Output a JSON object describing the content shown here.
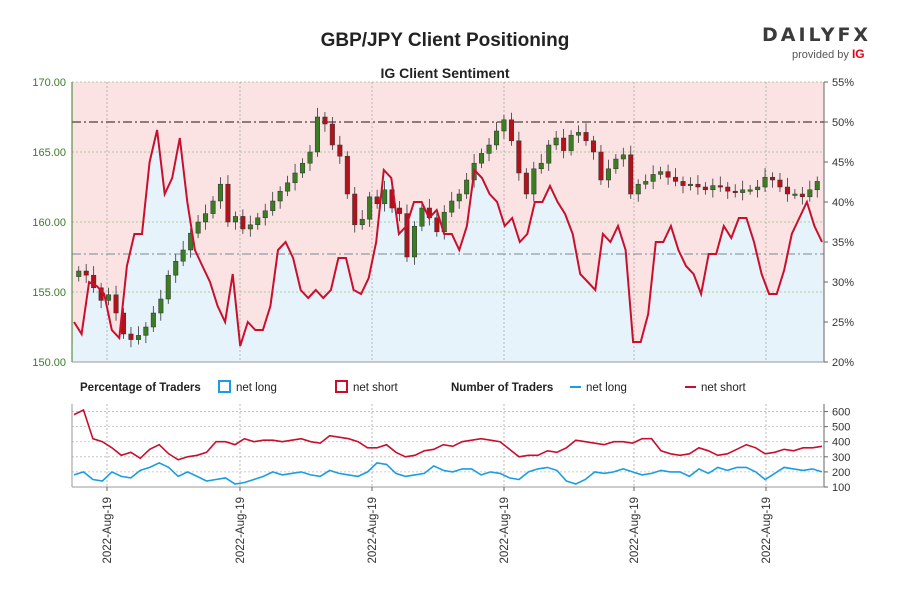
{
  "header": {
    "logo_text": "DAILYFX",
    "logo_sub_prefix": "provided by",
    "logo_sub_brand": "IG"
  },
  "colors": {
    "long_fill": "#e6f3fb",
    "short_fill": "#fbe3e4",
    "net_long": "#1a9ee0",
    "net_short": "#c8102e",
    "candle_up": "#3a7d22",
    "candle_down": "#b3121a",
    "left_axis_text": "#3a7d22",
    "grid": "#9bbf82"
  },
  "chart_data": [
    {
      "type": "candlestick",
      "title": "GBP/JPY Client Positioning",
      "subtitle": "IG Client Sentiment",
      "y_left": {
        "ticks": [
          "150.00",
          "155.00",
          "160.00",
          "165.00",
          "170.00"
        ],
        "min": 150,
        "max": 170
      },
      "y_right": {
        "ticks": [
          "20%",
          "25%",
          "30%",
          "35%",
          "40%",
          "45%",
          "50%",
          "55%"
        ],
        "min": 20,
        "max": 55
      },
      "reference_lines": {
        "percent_50": 50,
        "long_share": 33.5
      },
      "price_close": [
        156.5,
        156.2,
        155.3,
        154.4,
        154.8,
        153.5,
        152.0,
        151.6,
        151.9,
        152.5,
        153.5,
        154.5,
        156.2,
        157.2,
        158.0,
        159.2,
        160.0,
        160.6,
        161.5,
        162.7,
        160.0,
        160.4,
        159.5,
        159.8,
        160.3,
        160.8,
        161.5,
        162.2,
        162.8,
        163.5,
        164.2,
        165.0,
        167.5,
        167.0,
        165.5,
        164.7,
        162.0,
        159.8,
        160.2,
        161.8,
        161.3,
        162.3,
        161.0,
        160.6,
        157.5,
        159.7,
        161.0,
        160.3,
        159.3,
        160.7,
        161.5,
        162.0,
        163.0,
        164.2,
        164.9,
        165.5,
        166.5,
        167.3,
        165.8,
        163.5,
        162.0,
        163.8,
        164.2,
        165.5,
        166.0,
        165.1,
        166.2,
        166.4,
        165.8,
        165.0,
        163.0,
        163.8,
        164.5,
        164.8,
        162.0,
        162.7,
        162.9,
        163.4,
        163.6,
        163.2,
        162.9,
        162.6,
        162.7,
        162.5,
        162.3,
        162.6,
        162.5,
        162.2,
        162.1,
        162.3,
        162.3,
        162.5,
        163.2,
        163.0,
        162.5,
        162.0,
        162.0,
        161.8,
        162.3,
        162.9
      ],
      "pct_net_long": [
        25.0,
        23.5,
        30.0,
        29.5,
        28.5,
        24.0,
        23.0,
        32.0,
        36.0,
        36.0,
        45.0,
        49.0,
        41.0,
        43.0,
        48.0,
        40.0,
        34.0,
        32.0,
        30.0,
        27.0,
        25.0,
        31.0,
        22.0,
        25.0,
        24.0,
        24.0,
        27.0,
        34.0,
        35.0,
        33.0,
        29.0,
        28.0,
        29.0,
        28.0,
        29.0,
        33.0,
        33.0,
        29.0,
        28.5,
        30.5,
        35.0,
        44.0,
        43.0,
        36.0,
        37.0,
        40.0,
        40.0,
        38.0,
        39.0,
        36.0,
        36.0,
        34.0,
        37.0,
        44.0,
        43.0,
        41.0,
        40.0,
        37.0,
        38.0,
        35.0,
        36.0,
        40.0,
        40.0,
        42.0,
        40.0,
        38.5,
        36.0,
        31.0,
        30.0,
        29.0,
        36.0,
        35.0,
        37.0,
        34.0,
        22.5,
        22.5,
        26.0,
        35.0,
        35.0,
        37.0,
        34.0,
        32.0,
        31.0,
        28.5,
        33.5,
        33.5,
        37.0,
        35.5,
        38.0,
        38.0,
        35.0,
        31.0,
        28.5,
        28.5,
        31.5,
        36.0,
        38.0,
        40.0,
        37.0,
        35.0
      ]
    },
    {
      "type": "line",
      "legend": {
        "percentage_title": "Percentage of Traders",
        "number_title": "Number of Traders",
        "net_long": "net long",
        "net_short": "net short"
      },
      "y": {
        "ticks": [
          "100",
          "200",
          "300",
          "400",
          "500",
          "600"
        ],
        "min": 100,
        "max": 650
      },
      "x_ticks": [
        "2022-Aug-19",
        "2022-Aug-19",
        "2022-Aug-19",
        "2022-Aug-19",
        "2022-Aug-19",
        "2022-Aug-19"
      ],
      "series": [
        {
          "name": "net long",
          "values": [
            180,
            200,
            150,
            140,
            200,
            170,
            160,
            210,
            230,
            260,
            230,
            170,
            200,
            170,
            140,
            150,
            160,
            120,
            130,
            150,
            170,
            200,
            180,
            190,
            200,
            180,
            170,
            210,
            190,
            180,
            170,
            200,
            260,
            250,
            190,
            170,
            180,
            190,
            240,
            210,
            200,
            220,
            220,
            180,
            200,
            190,
            160,
            150,
            200,
            220,
            230,
            210,
            140,
            120,
            150,
            200,
            190,
            200,
            220,
            200,
            180,
            190,
            210,
            200,
            200,
            170,
            220,
            190,
            230,
            210,
            230,
            230,
            200,
            150,
            190,
            230,
            220,
            210,
            220,
            200
          ]
        },
        {
          "name": "net short",
          "values": [
            580,
            610,
            420,
            400,
            360,
            310,
            330,
            290,
            350,
            380,
            320,
            280,
            300,
            310,
            330,
            400,
            400,
            380,
            420,
            400,
            410,
            410,
            400,
            410,
            420,
            400,
            390,
            440,
            430,
            420,
            400,
            360,
            360,
            380,
            330,
            300,
            310,
            340,
            350,
            380,
            370,
            400,
            410,
            420,
            410,
            400,
            350,
            300,
            310,
            310,
            340,
            330,
            360,
            410,
            400,
            390,
            380,
            400,
            400,
            390,
            420,
            420,
            340,
            320,
            310,
            320,
            360,
            340,
            310,
            320,
            350,
            380,
            360,
            320,
            330,
            350,
            340,
            360,
            360,
            370
          ]
        }
      ]
    }
  ]
}
